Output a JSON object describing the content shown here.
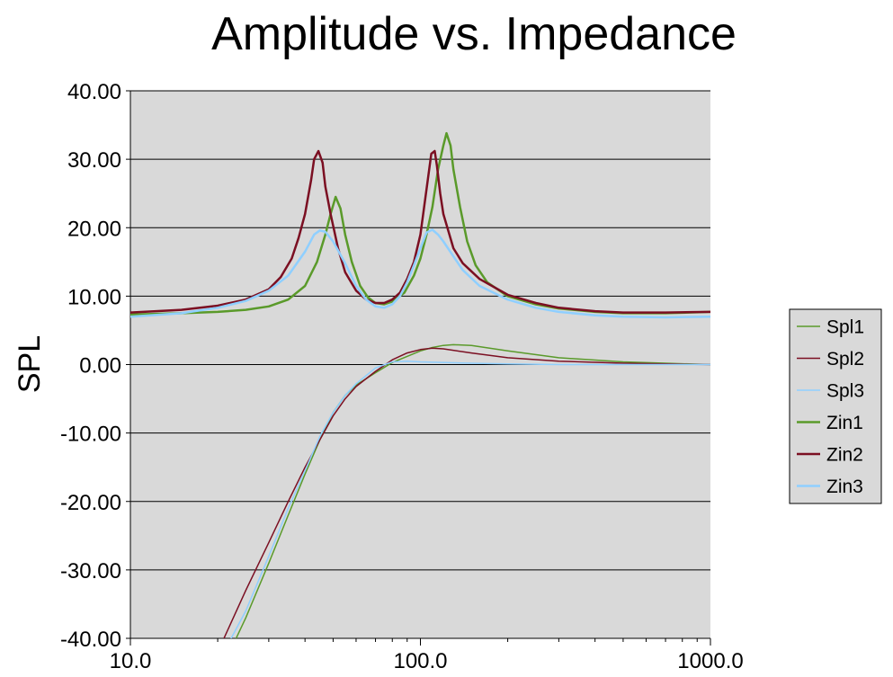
{
  "chart_data": {
    "type": "line",
    "title": "Amplitude vs. Impedance",
    "xlabel": "",
    "ylabel": "SPL",
    "x_scale": "log",
    "xlim": [
      10,
      1000
    ],
    "ylim": [
      -40,
      40
    ],
    "x_ticks": [
      10,
      100,
      1000
    ],
    "x_tick_labels": [
      "10.0",
      "100.0",
      "1000.0"
    ],
    "y_ticks": [
      40,
      30,
      20,
      10,
      0,
      -10,
      -20,
      -30,
      -40
    ],
    "y_tick_labels": [
      "40.00",
      "30.00",
      "20.00",
      "10.00",
      "0.00",
      "-10.00",
      "-20.00",
      "-30.00",
      "-40.00"
    ],
    "grid": "horizontal",
    "legend_position": "right",
    "plot_background": "#d9d9d9",
    "series": [
      {
        "name": "Spl1",
        "color": "#5a9a2a",
        "width": 1.5,
        "points": [
          [
            22,
            -42
          ],
          [
            25,
            -37
          ],
          [
            30,
            -29
          ],
          [
            35,
            -22
          ],
          [
            40,
            -16
          ],
          [
            45,
            -11
          ],
          [
            50,
            -7
          ],
          [
            55,
            -4.5
          ],
          [
            60,
            -3
          ],
          [
            70,
            -1.2
          ],
          [
            80,
            0.3
          ],
          [
            90,
            1.2
          ],
          [
            100,
            2
          ],
          [
            110,
            2.5
          ],
          [
            120,
            2.8
          ],
          [
            130,
            2.9
          ],
          [
            150,
            2.8
          ],
          [
            200,
            2
          ],
          [
            300,
            1
          ],
          [
            500,
            0.4
          ],
          [
            700,
            0.2
          ],
          [
            1000,
            0
          ]
        ]
      },
      {
        "name": "Spl2",
        "color": "#7b0f22",
        "width": 1.5,
        "points": [
          [
            20,
            -42
          ],
          [
            25,
            -33
          ],
          [
            30,
            -26
          ],
          [
            35,
            -20
          ],
          [
            40,
            -15
          ],
          [
            45,
            -11
          ],
          [
            50,
            -7.5
          ],
          [
            55,
            -5
          ],
          [
            60,
            -3.2
          ],
          [
            70,
            -1
          ],
          [
            80,
            0.7
          ],
          [
            90,
            1.7
          ],
          [
            100,
            2.2
          ],
          [
            110,
            2.4
          ],
          [
            120,
            2.3
          ],
          [
            150,
            1.7
          ],
          [
            200,
            1
          ],
          [
            300,
            0.5
          ],
          [
            500,
            0.2
          ],
          [
            1000,
            0
          ]
        ]
      },
      {
        "name": "Spl3",
        "color": "#8fcfff",
        "width": 1.5,
        "points": [
          [
            21,
            -42
          ],
          [
            25,
            -36
          ],
          [
            30,
            -28
          ],
          [
            35,
            -21
          ],
          [
            40,
            -15.5
          ],
          [
            45,
            -10.5
          ],
          [
            50,
            -7
          ],
          [
            55,
            -4.5
          ],
          [
            60,
            -2.8
          ],
          [
            70,
            -0.5
          ],
          [
            80,
            0.4
          ],
          [
            90,
            0.5
          ],
          [
            100,
            0.4
          ],
          [
            150,
            0.2
          ],
          [
            200,
            0.1
          ],
          [
            300,
            0
          ],
          [
            1000,
            0
          ]
        ]
      },
      {
        "name": "Zin1",
        "color": "#5a9a2a",
        "width": 2.5,
        "points": [
          [
            10,
            7.3
          ],
          [
            15,
            7.5
          ],
          [
            20,
            7.7
          ],
          [
            25,
            8
          ],
          [
            30,
            8.5
          ],
          [
            35,
            9.5
          ],
          [
            40,
            11.5
          ],
          [
            44,
            15
          ],
          [
            47,
            19
          ],
          [
            49,
            22
          ],
          [
            51,
            24.5
          ],
          [
            53,
            22.8
          ],
          [
            55,
            19
          ],
          [
            58,
            15
          ],
          [
            62,
            11.5
          ],
          [
            66,
            9.8
          ],
          [
            70,
            9
          ],
          [
            75,
            8.8
          ],
          [
            80,
            9.2
          ],
          [
            88,
            10.5
          ],
          [
            95,
            13
          ],
          [
            100,
            15.5
          ],
          [
            105,
            19
          ],
          [
            110,
            23
          ],
          [
            115,
            28.5
          ],
          [
            120,
            32
          ],
          [
            123,
            33.8
          ],
          [
            127,
            32
          ],
          [
            130,
            28.5
          ],
          [
            137,
            23
          ],
          [
            145,
            18
          ],
          [
            155,
            14.5
          ],
          [
            170,
            12
          ],
          [
            200,
            10
          ],
          [
            250,
            8.8
          ],
          [
            300,
            8.2
          ],
          [
            400,
            7.7
          ],
          [
            500,
            7.5
          ],
          [
            700,
            7.5
          ],
          [
            1000,
            7.7
          ]
        ]
      },
      {
        "name": "Zin2",
        "color": "#7b0f22",
        "width": 2.5,
        "points": [
          [
            10,
            7.6
          ],
          [
            15,
            8
          ],
          [
            20,
            8.6
          ],
          [
            25,
            9.5
          ],
          [
            30,
            11
          ],
          [
            33,
            12.8
          ],
          [
            36,
            15.5
          ],
          [
            38,
            18.5
          ],
          [
            40,
            22
          ],
          [
            42,
            27
          ],
          [
            43,
            30
          ],
          [
            44.5,
            31.2
          ],
          [
            46,
            29.5
          ],
          [
            47,
            26
          ],
          [
            49,
            22
          ],
          [
            52,
            17
          ],
          [
            55,
            13.5
          ],
          [
            60,
            10.8
          ],
          [
            65,
            9.5
          ],
          [
            70,
            9
          ],
          [
            75,
            9
          ],
          [
            80,
            9.5
          ],
          [
            85,
            10.5
          ],
          [
            90,
            12.5
          ],
          [
            95,
            15
          ],
          [
            100,
            19
          ],
          [
            103,
            23
          ],
          [
            106,
            27
          ],
          [
            109,
            30.8
          ],
          [
            112,
            31.2
          ],
          [
            114,
            29
          ],
          [
            117,
            25
          ],
          [
            120,
            22
          ],
          [
            130,
            17
          ],
          [
            140,
            14.8
          ],
          [
            160,
            12.5
          ],
          [
            200,
            10.2
          ],
          [
            250,
            9
          ],
          [
            300,
            8.3
          ],
          [
            400,
            7.8
          ],
          [
            500,
            7.6
          ],
          [
            700,
            7.6
          ],
          [
            1000,
            7.7
          ]
        ]
      },
      {
        "name": "Zin3",
        "color": "#8fcfff",
        "width": 2.5,
        "points": [
          [
            10,
            7
          ],
          [
            15,
            7.5
          ],
          [
            20,
            8.3
          ],
          [
            25,
            9.3
          ],
          [
            30,
            10.8
          ],
          [
            35,
            13
          ],
          [
            40,
            16.5
          ],
          [
            43,
            19
          ],
          [
            45,
            19.6
          ],
          [
            47,
            19.4
          ],
          [
            50,
            18
          ],
          [
            55,
            14.8
          ],
          [
            60,
            11.5
          ],
          [
            65,
            9.5
          ],
          [
            70,
            8.5
          ],
          [
            75,
            8.3
          ],
          [
            80,
            8.8
          ],
          [
            85,
            10
          ],
          [
            90,
            12
          ],
          [
            95,
            14.5
          ],
          [
            100,
            17
          ],
          [
            105,
            19.3
          ],
          [
            110,
            19.7
          ],
          [
            115,
            19
          ],
          [
            120,
            18
          ],
          [
            130,
            15.8
          ],
          [
            140,
            13.8
          ],
          [
            160,
            11.5
          ],
          [
            200,
            9.5
          ],
          [
            250,
            8.3
          ],
          [
            300,
            7.7
          ],
          [
            400,
            7.2
          ],
          [
            500,
            7
          ],
          [
            700,
            6.9
          ],
          [
            1000,
            7
          ]
        ]
      }
    ]
  }
}
